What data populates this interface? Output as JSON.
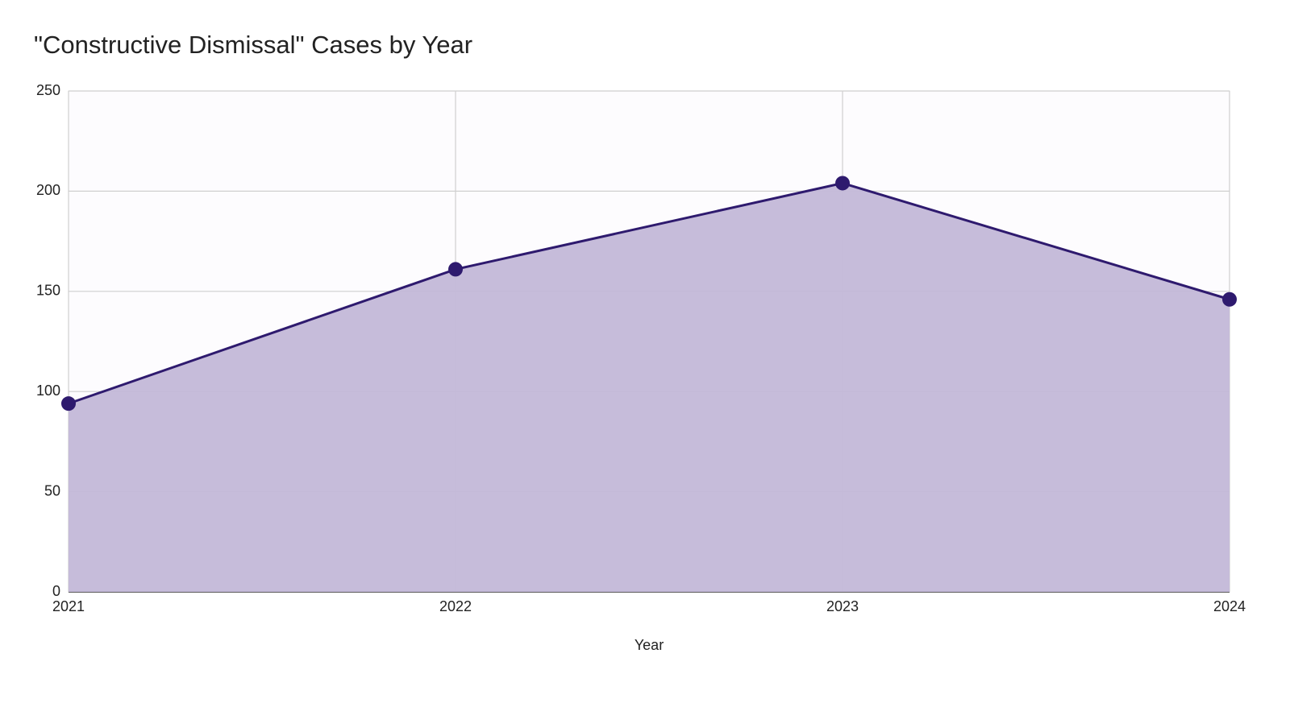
{
  "chart_data": {
    "type": "area",
    "title": "\"Constructive Dismissal\" Cases by Year",
    "x_label": "Year",
    "x": [
      2021,
      2022,
      2023,
      2024
    ],
    "series": [
      {
        "color": "#2e1a6e",
        "fill": "#c3b8d8",
        "values": [
          94,
          161,
          204,
          146
        ]
      }
    ],
    "xlim": [
      2021,
      2024
    ],
    "xticks": [
      2021,
      2022,
      2023,
      2024
    ],
    "ylim": [
      0,
      250
    ],
    "yticks": [
      0,
      50,
      100,
      150,
      200,
      250
    ],
    "grid": true
  }
}
